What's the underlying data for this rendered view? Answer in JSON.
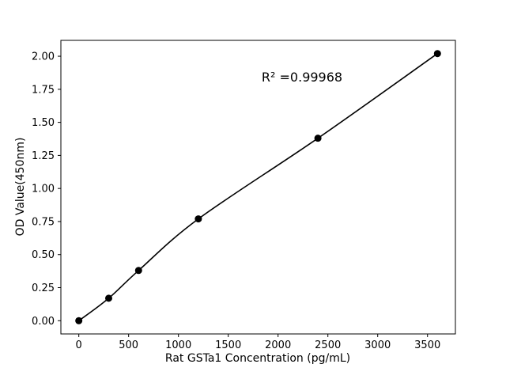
{
  "chart_data": {
    "type": "scatter",
    "x": [
      0,
      300,
      600,
      1200,
      2400,
      3600
    ],
    "y": [
      0.0,
      0.17,
      0.38,
      0.77,
      1.38,
      2.02
    ],
    "fit_curve_through_points": true,
    "annotation": "R² =0.99968",
    "xlabel": "Rat GSTa1 Concentration (pg/mL)",
    "ylabel": "OD Value(450nm)",
    "x_ticks": [
      0,
      500,
      1000,
      1500,
      2000,
      2500,
      3000,
      3500
    ],
    "x_tick_labels": [
      "0",
      "500",
      "1000",
      "1500",
      "2000",
      "2500",
      "3000",
      "3500"
    ],
    "y_ticks": [
      0.0,
      0.25,
      0.5,
      0.75,
      1.0,
      1.25,
      1.5,
      1.75,
      2.0
    ],
    "y_tick_labels": [
      "0.00",
      "0.25",
      "0.50",
      "0.75",
      "1.00",
      "1.25",
      "1.50",
      "1.75",
      "2.00"
    ],
    "xlim": [
      -180,
      3780
    ],
    "ylim": [
      -0.1,
      2.12
    ],
    "grid": false,
    "legend": "none",
    "point_color": "#000000",
    "line_color": "#000000",
    "background_color": "#ffffff"
  }
}
